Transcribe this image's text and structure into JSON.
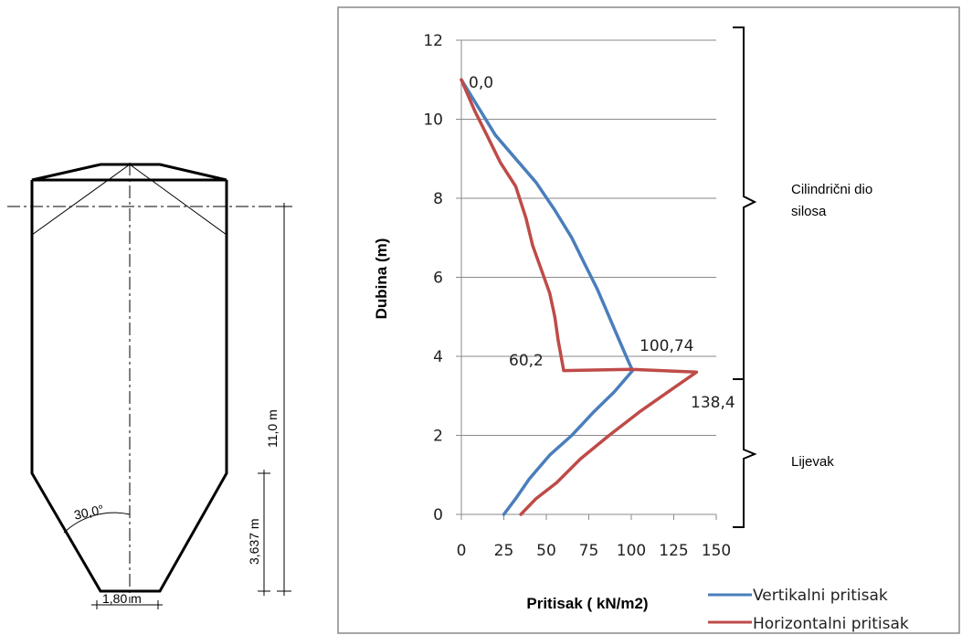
{
  "drawing": {
    "dim_height": "11,0 m",
    "dim_hopper": "3,637 m",
    "dim_outlet": "1,80 m",
    "angle": "30,0°"
  },
  "chart_data": {
    "type": "line",
    "xlabel": "Pritisak ( kN/m2)",
    "ylabel": "Dubina (m)",
    "xlim": [
      0,
      150
    ],
    "ylim": [
      0,
      12
    ],
    "xticks": [
      "0",
      "25",
      "50",
      "75",
      "100",
      "125",
      "150"
    ],
    "yticks": [
      "0",
      "2",
      "4",
      "6",
      "8",
      "10",
      "12"
    ],
    "grid": "horizontal",
    "legend_position": "bottom-right",
    "series": [
      {
        "name": "Vertikalni pritisak",
        "color": "#4A7EBB",
        "points": [
          [
            0,
            11.0
          ],
          [
            10,
            10.3
          ],
          [
            20,
            9.6
          ],
          [
            32,
            9.0
          ],
          [
            44,
            8.4
          ],
          [
            55,
            7.7
          ],
          [
            65,
            7.0
          ],
          [
            73,
            6.3
          ],
          [
            80,
            5.7
          ],
          [
            85,
            5.2
          ],
          [
            89,
            4.8
          ],
          [
            94,
            4.3
          ],
          [
            98,
            3.9
          ],
          [
            100.74,
            3.64
          ],
          [
            90,
            3.1
          ],
          [
            78,
            2.6
          ],
          [
            65,
            2.0
          ],
          [
            52,
            1.5
          ],
          [
            40,
            0.9
          ],
          [
            32,
            0.4
          ],
          [
            25,
            0.0
          ]
        ]
      },
      {
        "name": "Horizontalni pritisak",
        "color": "#BE4B48",
        "points": [
          [
            0,
            11.0
          ],
          [
            8,
            10.2
          ],
          [
            15,
            9.6
          ],
          [
            23,
            8.9
          ],
          [
            32,
            8.3
          ],
          [
            38,
            7.5
          ],
          [
            42,
            6.8
          ],
          [
            47,
            6.2
          ],
          [
            52,
            5.6
          ],
          [
            55,
            5.0
          ],
          [
            57,
            4.4
          ],
          [
            60.2,
            3.64
          ],
          [
            100,
            3.67
          ],
          [
            138.4,
            3.6
          ],
          [
            125,
            3.2
          ],
          [
            105,
            2.6
          ],
          [
            87,
            2.0
          ],
          [
            70,
            1.4
          ],
          [
            56,
            0.8
          ],
          [
            44,
            0.4
          ],
          [
            35,
            0.0
          ]
        ]
      }
    ],
    "annotations": [
      "0,0",
      "60,2",
      "100,74",
      "138,4"
    ],
    "brackets": [
      "Cilindrični dio silosa",
      "Lijevak"
    ]
  },
  "labels": {
    "anno_zero": "0,0",
    "anno_60": "60,2",
    "anno_100": "100,74",
    "anno_138": "138,4",
    "bracket_top_line1": "Cilindrični dio",
    "bracket_top_line2": "silosa",
    "bracket_bottom": "Lijevak"
  }
}
